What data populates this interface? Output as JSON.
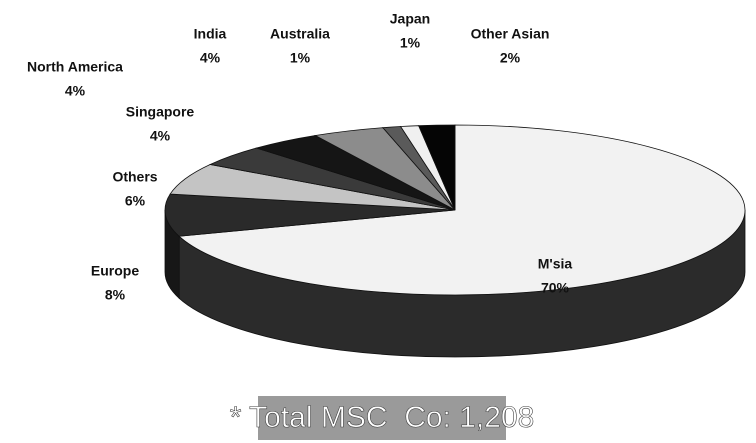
{
  "chart_data": {
    "type": "pie3d",
    "categories": [
      "M'sia",
      "Europe",
      "Others",
      "Singapore",
      "North America",
      "India",
      "Australia",
      "Japan",
      "Other Asian"
    ],
    "values": [
      70,
      8,
      6,
      4,
      4,
      4,
      1,
      1,
      2
    ],
    "value_labels": [
      "70%",
      "8%",
      "6%",
      "4%",
      "4%",
      "4%",
      "1%",
      "1%",
      "2%"
    ],
    "colors": [
      "#f2f2f2",
      "#2a2a2a",
      "#c4c4c4",
      "#3a3a3a",
      "#151515",
      "#8c8c8c",
      "#5a5a5a",
      "#f0f0f0",
      "#050505"
    ],
    "annotation": "* Total MSC  Co: 1,208"
  }
}
